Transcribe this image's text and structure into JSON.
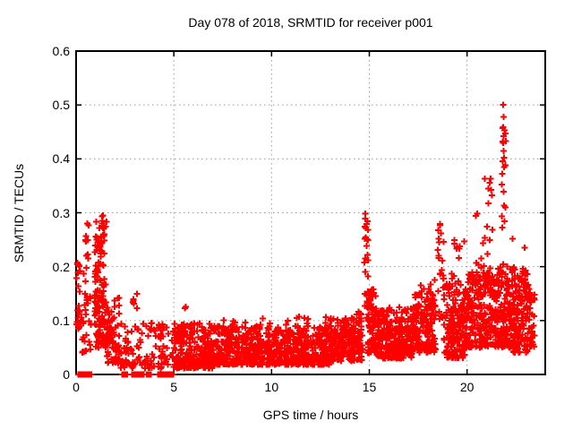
{
  "window": {
    "background": "#ffffff"
  },
  "chart_data": {
    "type": "scatter",
    "title": "Day 078 of 2018, SRMTID for receiver p001",
    "xlabel": "GPS time / hours",
    "ylabel": "SRMTID / TECUs",
    "series_name": "SRMTID",
    "xlim": [
      0,
      24
    ],
    "ylim": [
      0,
      0.6
    ],
    "x_ticks": [
      {
        "v": 0,
        "label": "0"
      },
      {
        "v": 5,
        "label": "5"
      },
      {
        "v": 10,
        "label": "10"
      },
      {
        "v": 15,
        "label": "15"
      },
      {
        "v": 20,
        "label": "20"
      }
    ],
    "y_ticks": [
      {
        "v": 0,
        "label": "0"
      },
      {
        "v": 0.1,
        "label": "0.1"
      },
      {
        "v": 0.2,
        "label": "0.2"
      },
      {
        "v": 0.3,
        "label": "0.3"
      },
      {
        "v": 0.4,
        "label": "0.4"
      },
      {
        "v": 0.5,
        "label": "0.5"
      },
      {
        "v": 0.6,
        "label": "0.6"
      }
    ],
    "grid": true,
    "legend": "none",
    "marker": {
      "shape": "plus",
      "color": "#ff0000",
      "size": 7,
      "stroke_width": 2
    },
    "grid_color": "#9a9a9a",
    "border_color": "#000000",
    "text_color": "#000000",
    "seed": 2018078,
    "segments": [
      {
        "t0": 0.02,
        "t1": 0.22,
        "n": 28,
        "v_lo": 0.08,
        "v_hi": 0.215,
        "bias": 1.1
      },
      {
        "t0": 0.28,
        "t1": 0.78,
        "n": 32,
        "v_lo": 0.04,
        "v_hi": 0.2,
        "bias": 1.3
      },
      {
        "t0": 0.38,
        "t1": 0.75,
        "n": 9,
        "v_lo": 0.21,
        "v_hi": 0.285,
        "bias": 1.0
      },
      {
        "t0": 0.95,
        "t1": 1.58,
        "n": 135,
        "v_lo": 0.05,
        "v_hi": 0.285,
        "bias": 1.5
      },
      {
        "t0": 1.28,
        "t1": 1.46,
        "n": 9,
        "v_lo": 0.24,
        "v_hi": 0.295,
        "bias": 1.0
      },
      {
        "t0": 1.58,
        "t1": 2.25,
        "n": 70,
        "v_lo": 0.02,
        "v_hi": 0.145,
        "bias": 1.6
      },
      {
        "t0": 2.25,
        "t1": 4.98,
        "n": 115,
        "v_lo": 0.012,
        "v_hi": 0.1,
        "bias": 1.6
      },
      {
        "t0": 2.9,
        "t1": 3.25,
        "n": 6,
        "v_lo": 0.1,
        "v_hi": 0.15,
        "bias": 1.0
      },
      {
        "t0": 5.0,
        "t1": 7.0,
        "n": 250,
        "v_lo": 0.012,
        "v_hi": 0.095,
        "bias": 1.5
      },
      {
        "t0": 5.55,
        "t1": 5.75,
        "n": 2,
        "v_lo": 0.12,
        "v_hi": 0.145,
        "bias": 1.0
      },
      {
        "t0": 7.0,
        "t1": 13.0,
        "n": 720,
        "v_lo": 0.018,
        "v_hi": 0.09,
        "bias": 1.4
      },
      {
        "t0": 7.2,
        "t1": 12.9,
        "n": 16,
        "v_lo": 0.09,
        "v_hi": 0.108,
        "bias": 1.0
      },
      {
        "t0": 13.0,
        "t1": 14.68,
        "n": 210,
        "v_lo": 0.025,
        "v_hi": 0.105,
        "bias": 1.4
      },
      {
        "t0": 14.3,
        "t1": 14.62,
        "n": 6,
        "v_lo": 0.105,
        "v_hi": 0.13,
        "bias": 1.0
      },
      {
        "t0": 14.72,
        "t1": 14.94,
        "n": 24,
        "v_lo": 0.1,
        "v_hi": 0.295,
        "bias": 1.0
      },
      {
        "t0": 14.9,
        "t1": 15.35,
        "n": 85,
        "v_lo": 0.04,
        "v_hi": 0.16,
        "bias": 1.3
      },
      {
        "t0": 15.35,
        "t1": 17.3,
        "n": 290,
        "v_lo": 0.03,
        "v_hi": 0.125,
        "bias": 1.4
      },
      {
        "t0": 17.3,
        "t1": 18.4,
        "n": 165,
        "v_lo": 0.04,
        "v_hi": 0.15,
        "bias": 1.3
      },
      {
        "t0": 17.5,
        "t1": 18.35,
        "n": 8,
        "v_lo": 0.15,
        "v_hi": 0.19,
        "bias": 1.0
      },
      {
        "t0": 18.5,
        "t1": 18.82,
        "n": 22,
        "v_lo": 0.1,
        "v_hi": 0.278,
        "bias": 1.0
      },
      {
        "t0": 18.82,
        "t1": 20.0,
        "n": 195,
        "v_lo": 0.03,
        "v_hi": 0.17,
        "bias": 1.3
      },
      {
        "t0": 19.2,
        "t1": 19.95,
        "n": 12,
        "v_lo": 0.17,
        "v_hi": 0.25,
        "bias": 1.0
      },
      {
        "t0": 20.0,
        "t1": 21.6,
        "n": 250,
        "v_lo": 0.05,
        "v_hi": 0.19,
        "bias": 1.2
      },
      {
        "t0": 20.3,
        "t1": 21.35,
        "n": 13,
        "v_lo": 0.19,
        "v_hi": 0.3,
        "bias": 1.0
      },
      {
        "t0": 20.9,
        "t1": 21.3,
        "n": 5,
        "v_lo": 0.31,
        "v_hi": 0.365,
        "bias": 1.0
      },
      {
        "t0": 21.55,
        "t1": 22.3,
        "n": 115,
        "v_lo": 0.05,
        "v_hi": 0.2,
        "bias": 1.3
      },
      {
        "t0": 21.76,
        "t1": 22.0,
        "n": 15,
        "v_lo": 0.2,
        "v_hi": 0.47,
        "bias": 1.0
      },
      {
        "t0": 22.3,
        "t1": 23.1,
        "n": 150,
        "v_lo": 0.04,
        "v_hi": 0.2,
        "bias": 1.3
      },
      {
        "t0": 23.1,
        "t1": 23.45,
        "n": 38,
        "v_lo": 0.05,
        "v_hi": 0.17,
        "bias": 1.2
      }
    ],
    "zero_runs": [
      {
        "t0": 0.12,
        "t1": 0.45,
        "n": 28
      },
      {
        "t0": 0.55,
        "t1": 0.82,
        "n": 22
      },
      {
        "t0": 2.35,
        "t1": 2.62,
        "n": 22
      },
      {
        "t0": 2.85,
        "t1": 3.15,
        "n": 24
      },
      {
        "t0": 3.22,
        "t1": 3.46,
        "n": 18
      },
      {
        "t0": 3.58,
        "t1": 3.82,
        "n": 18
      },
      {
        "t0": 4.18,
        "t1": 4.62,
        "n": 32
      },
      {
        "t0": 4.66,
        "t1": 4.97,
        "n": 24
      }
    ],
    "peaks": [
      {
        "t": 21.85,
        "v": 0.5
      },
      {
        "t": 21.88,
        "v": 0.478
      },
      {
        "t": 21.83,
        "v": 0.457
      },
      {
        "t": 21.86,
        "v": 0.442
      },
      {
        "t": 21.84,
        "v": 0.43
      },
      {
        "t": 21.87,
        "v": 0.415
      },
      {
        "t": 21.9,
        "v": 0.402
      },
      {
        "t": 21.97,
        "v": 0.388
      },
      {
        "t": 21.8,
        "v": 0.372
      },
      {
        "t": 21.15,
        "v": 0.356
      },
      {
        "t": 21.22,
        "v": 0.342
      },
      {
        "t": 14.8,
        "v": 0.298
      },
      {
        "t": 14.82,
        "v": 0.272
      },
      {
        "t": 14.78,
        "v": 0.252
      },
      {
        "t": 1.37,
        "v": 0.295
      },
      {
        "t": 20.52,
        "v": 0.298
      },
      {
        "t": 18.62,
        "v": 0.279
      },
      {
        "t": 18.66,
        "v": 0.262
      },
      {
        "t": 22.32,
        "v": 0.252
      },
      {
        "t": 22.95,
        "v": 0.235
      }
    ]
  }
}
